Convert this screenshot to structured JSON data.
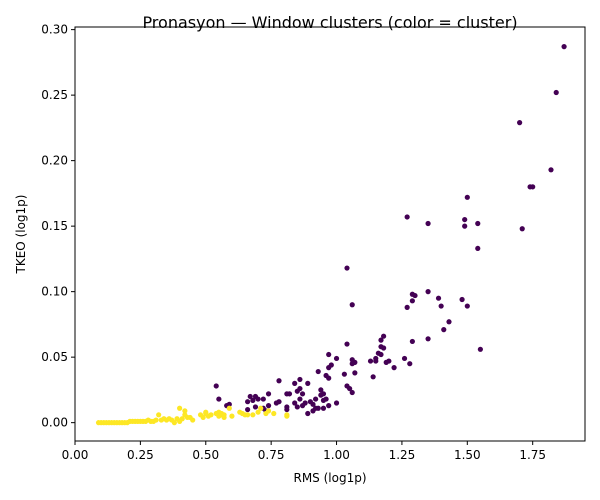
{
  "chart_data": {
    "type": "scatter",
    "title": "Pronasyon — Window clusters (color = cluster)",
    "xlabel": "RMS (log1p)",
    "ylabel": "TKEO (log1p)",
    "xlim": [
      0.0,
      1.95
    ],
    "ylim": [
      -0.014,
      0.302
    ],
    "x_ticks": [
      0.0,
      0.25,
      0.5,
      0.75,
      1.0,
      1.25,
      1.5,
      1.75
    ],
    "x_tick_labels": [
      "0.00",
      "0.25",
      "0.50",
      "0.75",
      "1.00",
      "1.25",
      "1.50",
      "1.75"
    ],
    "y_ticks": [
      0.0,
      0.05,
      0.1,
      0.15,
      0.2,
      0.25,
      0.3
    ],
    "y_tick_labels": [
      "0.00",
      "0.05",
      "0.10",
      "0.15",
      "0.20",
      "0.25",
      "0.30"
    ],
    "grid": false,
    "legend": false,
    "colors": {
      "cluster_0": "#440154",
      "cluster_1": "#fde725"
    },
    "series": [
      {
        "color": "#440154",
        "points": [
          [
            1.87,
            0.287
          ],
          [
            1.84,
            0.252
          ],
          [
            1.7,
            0.229
          ],
          [
            1.82,
            0.193
          ],
          [
            1.74,
            0.18
          ],
          [
            1.75,
            0.18
          ],
          [
            1.5,
            0.172
          ],
          [
            1.27,
            0.157
          ],
          [
            1.49,
            0.155
          ],
          [
            1.35,
            0.152
          ],
          [
            1.54,
            0.152
          ],
          [
            1.49,
            0.15
          ],
          [
            1.71,
            0.148
          ],
          [
            1.54,
            0.133
          ],
          [
            1.04,
            0.118
          ],
          [
            1.35,
            0.1
          ],
          [
            1.29,
            0.098
          ],
          [
            1.3,
            0.097
          ],
          [
            1.48,
            0.094
          ],
          [
            1.29,
            0.093
          ],
          [
            1.39,
            0.095
          ],
          [
            1.06,
            0.09
          ],
          [
            1.27,
            0.088
          ],
          [
            1.4,
            0.089
          ],
          [
            1.5,
            0.089
          ],
          [
            1.43,
            0.077
          ],
          [
            1.41,
            0.071
          ],
          [
            1.18,
            0.066
          ],
          [
            1.17,
            0.063
          ],
          [
            1.29,
            0.062
          ],
          [
            1.35,
            0.064
          ],
          [
            1.04,
            0.06
          ],
          [
            1.17,
            0.058
          ],
          [
            1.55,
            0.056
          ],
          [
            1.18,
            0.057
          ],
          [
            1.16,
            0.053
          ],
          [
            1.15,
            0.049
          ],
          [
            1.17,
            0.052
          ],
          [
            0.97,
            0.052
          ],
          [
            1.26,
            0.049
          ],
          [
            1.0,
            0.049
          ],
          [
            1.06,
            0.048
          ],
          [
            1.07,
            0.046
          ],
          [
            1.2,
            0.047
          ],
          [
            1.15,
            0.047
          ],
          [
            1.13,
            0.047
          ],
          [
            0.98,
            0.044
          ],
          [
            1.22,
            0.042
          ],
          [
            1.06,
            0.045
          ],
          [
            1.28,
            0.045
          ],
          [
            1.19,
            0.046
          ],
          [
            0.97,
            0.042
          ],
          [
            0.93,
            0.039
          ],
          [
            1.07,
            0.038
          ],
          [
            0.96,
            0.036
          ],
          [
            1.03,
            0.037
          ],
          [
            1.14,
            0.035
          ],
          [
            0.97,
            0.034
          ],
          [
            0.78,
            0.032
          ],
          [
            0.84,
            0.03
          ],
          [
            0.86,
            0.033
          ],
          [
            0.89,
            0.03
          ],
          [
            1.04,
            0.028
          ],
          [
            1.05,
            0.026
          ],
          [
            0.94,
            0.025
          ],
          [
            0.86,
            0.026
          ],
          [
            1.06,
            0.023
          ],
          [
            0.81,
            0.022
          ],
          [
            0.54,
            0.028
          ],
          [
            0.87,
            0.022
          ],
          [
            0.85,
            0.024
          ],
          [
            0.95,
            0.022
          ],
          [
            0.82,
            0.022
          ],
          [
            0.74,
            0.022
          ],
          [
            0.69,
            0.02
          ],
          [
            0.72,
            0.018
          ],
          [
            0.7,
            0.018
          ],
          [
            0.67,
            0.02
          ],
          [
            0.66,
            0.016
          ],
          [
            0.68,
            0.017
          ],
          [
            0.78,
            0.016
          ],
          [
            0.55,
            0.018
          ],
          [
            0.86,
            0.018
          ],
          [
            0.88,
            0.015
          ],
          [
            0.9,
            0.016
          ],
          [
            0.92,
            0.018
          ],
          [
            0.95,
            0.017
          ],
          [
            0.91,
            0.014
          ],
          [
            0.87,
            0.013
          ],
          [
            0.84,
            0.015
          ],
          [
            0.85,
            0.012
          ],
          [
            0.81,
            0.012
          ],
          [
            0.74,
            0.013
          ],
          [
            0.69,
            0.012
          ],
          [
            0.72,
            0.011
          ],
          [
            0.59,
            0.014
          ],
          [
            0.58,
            0.013
          ],
          [
            0.66,
            0.01
          ],
          [
            0.77,
            0.015
          ],
          [
            0.73,
            0.009
          ],
          [
            0.81,
            0.01
          ],
          [
            0.93,
            0.011
          ],
          [
            0.95,
            0.011
          ],
          [
            0.92,
            0.011
          ],
          [
            0.91,
            0.009
          ],
          [
            0.89,
            0.007
          ],
          [
            0.97,
            0.013
          ],
          [
            1.0,
            0.015
          ],
          [
            0.96,
            0.018
          ],
          [
            0.94,
            0.021
          ]
        ]
      },
      {
        "color": "#fde725",
        "points": [
          [
            0.09,
            0.0
          ],
          [
            0.1,
            0.0
          ],
          [
            0.11,
            0.0
          ],
          [
            0.12,
            0.0
          ],
          [
            0.13,
            0.0
          ],
          [
            0.14,
            0.0
          ],
          [
            0.15,
            0.0
          ],
          [
            0.16,
            0.0
          ],
          [
            0.17,
            0.0
          ],
          [
            0.18,
            0.0
          ],
          [
            0.19,
            0.0
          ],
          [
            0.2,
            0.0
          ],
          [
            0.21,
            0.001
          ],
          [
            0.22,
            0.001
          ],
          [
            0.23,
            0.001
          ],
          [
            0.24,
            0.001
          ],
          [
            0.25,
            0.001
          ],
          [
            0.26,
            0.001
          ],
          [
            0.27,
            0.001
          ],
          [
            0.28,
            0.002
          ],
          [
            0.29,
            0.001
          ],
          [
            0.3,
            0.001
          ],
          [
            0.31,
            0.002
          ],
          [
            0.32,
            0.006
          ],
          [
            0.33,
            0.002
          ],
          [
            0.34,
            0.003
          ],
          [
            0.35,
            0.002
          ],
          [
            0.36,
            0.003
          ],
          [
            0.37,
            0.002
          ],
          [
            0.38,
            0.0
          ],
          [
            0.39,
            0.003
          ],
          [
            0.4,
            0.011
          ],
          [
            0.4,
            0.001
          ],
          [
            0.41,
            0.003
          ],
          [
            0.42,
            0.006
          ],
          [
            0.42,
            0.009
          ],
          [
            0.43,
            0.004
          ],
          [
            0.44,
            0.004
          ],
          [
            0.45,
            0.002
          ],
          [
            0.48,
            0.006
          ],
          [
            0.49,
            0.004
          ],
          [
            0.5,
            0.007
          ],
          [
            0.5,
            0.008
          ],
          [
            0.51,
            0.005
          ],
          [
            0.52,
            0.006
          ],
          [
            0.54,
            0.007
          ],
          [
            0.55,
            0.008
          ],
          [
            0.55,
            0.005
          ],
          [
            0.56,
            0.006
          ],
          [
            0.56,
            0.007
          ],
          [
            0.57,
            0.004
          ],
          [
            0.57,
            0.006
          ],
          [
            0.59,
            0.011
          ],
          [
            0.6,
            0.005
          ],
          [
            0.63,
            0.008
          ],
          [
            0.64,
            0.007
          ],
          [
            0.65,
            0.006
          ],
          [
            0.66,
            0.006
          ],
          [
            0.68,
            0.006
          ],
          [
            0.7,
            0.008
          ],
          [
            0.71,
            0.011
          ],
          [
            0.73,
            0.007
          ],
          [
            0.74,
            0.009
          ],
          [
            0.76,
            0.007
          ],
          [
            0.81,
            0.005
          ],
          [
            0.81,
            0.006
          ]
        ]
      }
    ]
  }
}
